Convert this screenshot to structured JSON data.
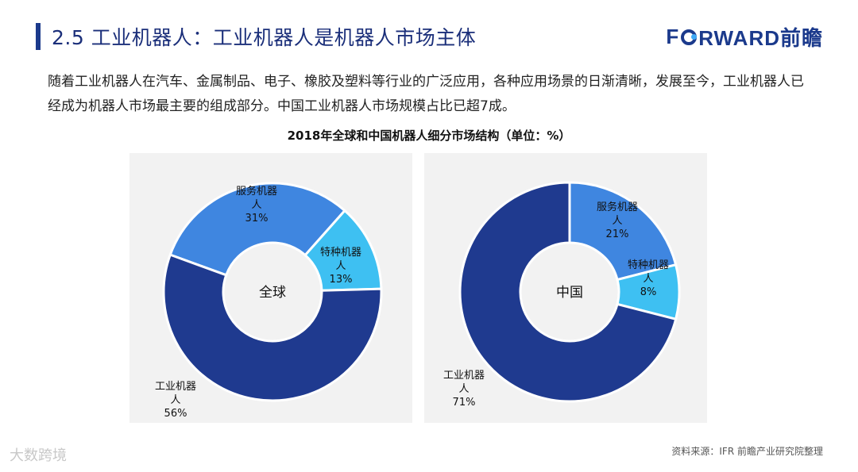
{
  "header": {
    "title": "2.5 工业机器人：工业机器人是机器人市场主体",
    "logo_text_pre": "F",
    "logo_text_post": "RWARD前瞻"
  },
  "intro": {
    "text": "随着工业机器人在汽车、金属制品、电子、橡胶及塑料等行业的广泛应用，各种应用场景的日渐清晰，发展至今，工业机器人已经成为机器人市场最主要的组成部分。中国工业机器人市场规模占比已超7成。"
  },
  "chart_title": "2018年全球和中国机器人细分市场结构（单位：%）",
  "chart_data": [
    {
      "type": "pie",
      "center_label": "全球",
      "categories": [
        "服务机器人",
        "特种机器人",
        "工业机器人"
      ],
      "values": [
        31,
        13,
        56
      ],
      "colors": [
        "#3f86e0",
        "#3ec0f2",
        "#1f3a8f"
      ]
    },
    {
      "type": "pie",
      "center_label": "中国",
      "categories": [
        "服务机器人",
        "特种机器人",
        "工业机器人"
      ],
      "values": [
        21,
        8,
        71
      ],
      "colors": [
        "#3f86e0",
        "#3ec0f2",
        "#1f3a8f"
      ]
    }
  ],
  "footer": {
    "source": "资料来源：IFR 前瞻产业研究院整理",
    "watermark": "大数跨境"
  }
}
